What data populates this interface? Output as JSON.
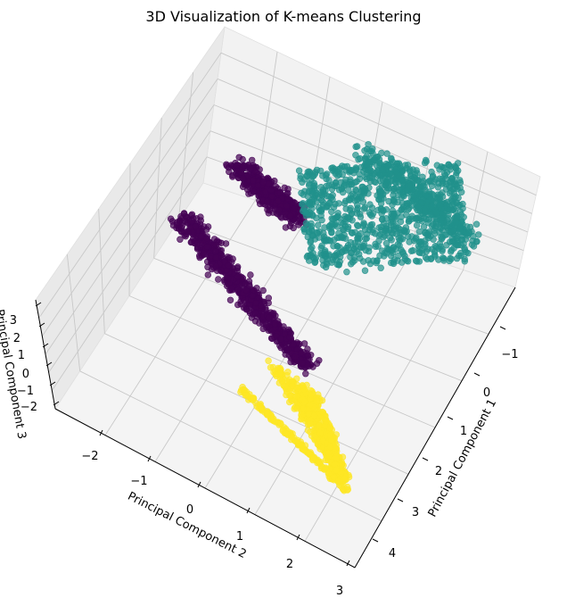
{
  "chart_data": {
    "type": "scatter",
    "projection": "3d",
    "title": "3D Visualization of K-means Clustering",
    "xlabel": "Principal Component 1",
    "ylabel": "Principal Component 2",
    "zlabel": "Principal Component 3",
    "x_ticks": [
      "−1",
      "0",
      "1",
      "2",
      "3",
      "4"
    ],
    "y_ticks": [
      "−2",
      "−1",
      "0",
      "1",
      "2",
      "3"
    ],
    "z_ticks": [
      "−2",
      "−1",
      "0",
      "1",
      "2",
      "3"
    ],
    "grid": true,
    "clusters": [
      {
        "color": "#440154",
        "alpha": 0.7
      },
      {
        "color": "#21918c",
        "alpha": 0.7
      },
      {
        "color": "#fde725",
        "alpha": 0.7
      }
    ]
  }
}
